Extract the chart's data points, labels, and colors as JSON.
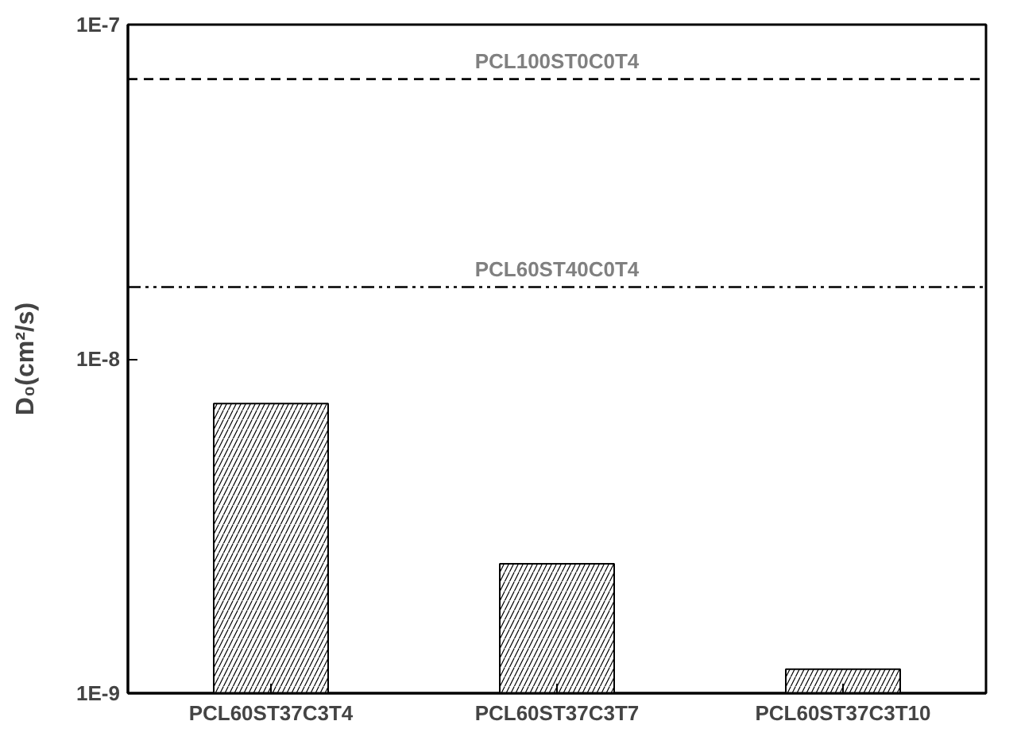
{
  "chart_data": {
    "type": "bar",
    "ylabel": "D₀(cm²/s)",
    "log": true,
    "categories": [
      "PCL60ST37C3T4",
      "PCL60ST37C3T7",
      "PCL60ST37C3T10"
    ],
    "values": [
      7.35e-09,
      2.44e-09,
      1.18e-09
    ],
    "color": "#ffffff",
    "ylim": [
      1e-09,
      1e-07
    ],
    "yticks": [
      {
        "value": 1e-09,
        "label": "1E-9"
      },
      {
        "value": 1e-08,
        "label": "1E-8"
      },
      {
        "value": 1e-07,
        "label": "1E-7"
      }
    ],
    "ref_lines": [
      {
        "axis": "y",
        "value": 6.87e-08,
        "label": "PCL100ST0C0T4",
        "color": "#000000",
        "line_style": "dashed"
      },
      {
        "axis": "y",
        "value": 1.64e-08,
        "label": "PCL60ST40C0T4",
        "color": "#000000",
        "line_style": "dashdot"
      }
    ],
    "grid": false
  }
}
